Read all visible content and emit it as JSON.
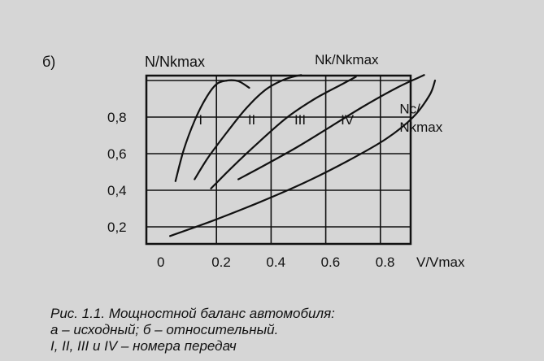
{
  "panel_label": "б)",
  "caption": {
    "line1": "Рис. 1.1.  Мощностной баланс автомобиля:",
    "line2": "а – исходный; б – относительный.",
    "line3": "I, II, III и IV – номера передач"
  },
  "colors": {
    "background": "#d6d6d6",
    "ink": "#111111"
  },
  "chart_data": {
    "type": "line",
    "xlabel": "V/Vmax",
    "ylabel": "N/Nkmax",
    "xlim": [
      0,
      1.0
    ],
    "ylim": [
      0.1,
      1.0
    ],
    "x_ticks": [
      "0",
      "0.2",
      "0.4",
      "0.6",
      "0.8"
    ],
    "y_ticks": [
      "0,2",
      "0,4",
      "0,6",
      "0,8"
    ],
    "grid": true,
    "series": [
      {
        "name": "I",
        "x": [
          0.05,
          0.08,
          0.12,
          0.16,
          0.2,
          0.24,
          0.27,
          0.29,
          0.32
        ],
        "y": [
          0.45,
          0.62,
          0.78,
          0.9,
          0.98,
          1.0,
          1.0,
          0.99,
          0.96
        ]
      },
      {
        "name": "II",
        "x": [
          0.12,
          0.17,
          0.24,
          0.31,
          0.38,
          0.44,
          0.48,
          0.51
        ],
        "y": [
          0.46,
          0.58,
          0.72,
          0.85,
          0.95,
          1.0,
          1.02,
          1.03
        ]
      },
      {
        "name": "III",
        "x": [
          0.18,
          0.26,
          0.36,
          0.46,
          0.56,
          0.66,
          0.71
        ],
        "y": [
          0.41,
          0.53,
          0.67,
          0.8,
          0.9,
          0.98,
          1.02
        ]
      },
      {
        "name": "IV",
        "x": [
          0.28,
          0.38,
          0.5,
          0.62,
          0.74,
          0.86,
          0.96
        ],
        "y": [
          0.46,
          0.54,
          0.64,
          0.75,
          0.86,
          0.96,
          1.03
        ]
      },
      {
        "name": "Nc/Nkmax",
        "x": [
          0.03,
          0.18,
          0.35,
          0.52,
          0.68,
          0.82,
          0.92,
          0.98,
          1.0
        ],
        "y": [
          0.15,
          0.23,
          0.33,
          0.44,
          0.56,
          0.68,
          0.8,
          0.92,
          1.0
        ]
      }
    ],
    "annotations": [
      {
        "text": "I",
        "x": 0.135,
        "y": 0.76
      },
      {
        "text": "II",
        "x": 0.315,
        "y": 0.76
      },
      {
        "text": "III",
        "x": 0.485,
        "y": 0.76
      },
      {
        "text": "IV",
        "x": 0.655,
        "y": 0.76
      },
      {
        "text": "Nk/Nkmax",
        "x": 0.56,
        "y": 1.09
      },
      {
        "text": "Nc/",
        "x": 0.87,
        "y": 0.82
      },
      {
        "text": "Nkmax",
        "x": 0.87,
        "y": 0.72
      }
    ]
  }
}
